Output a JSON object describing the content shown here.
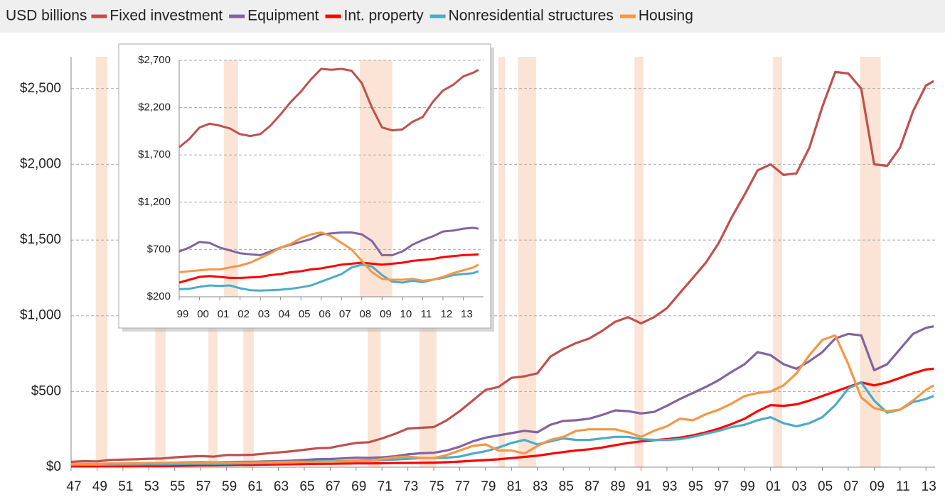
{
  "chart_data": [
    {
      "type": "line",
      "y_label": "USD billions",
      "grid": true,
      "x": [
        1947,
        1948,
        1949,
        1950,
        1951,
        1952,
        1953,
        1954,
        1955,
        1956,
        1957,
        1958,
        1959,
        1960,
        1961,
        1962,
        1963,
        1964,
        1965,
        1966,
        1967,
        1968,
        1969,
        1970,
        1971,
        1972,
        1973,
        1974,
        1975,
        1976,
        1977,
        1978,
        1979,
        1980,
        1981,
        1982,
        1983,
        1984,
        1985,
        1986,
        1987,
        1988,
        1989,
        1990,
        1991,
        1992,
        1993,
        1994,
        1995,
        1996,
        1997,
        1998,
        1999,
        2000,
        2001,
        2002,
        2003,
        2004,
        2005,
        2006,
        2007,
        2008,
        2009,
        2010,
        2011,
        2012,
        2013,
        2013.6
      ],
      "xlim": [
        1947,
        2013.7
      ],
      "xticks": [
        {
          "value": 1947,
          "label": "47"
        },
        {
          "value": 1949,
          "label": "49"
        },
        {
          "value": 1951,
          "label": "51"
        },
        {
          "value": 1953,
          "label": "53"
        },
        {
          "value": 1955,
          "label": "55"
        },
        {
          "value": 1957,
          "label": "57"
        },
        {
          "value": 1959,
          "label": "59"
        },
        {
          "value": 1961,
          "label": "61"
        },
        {
          "value": 1963,
          "label": "63"
        },
        {
          "value": 1965,
          "label": "65"
        },
        {
          "value": 1967,
          "label": "67"
        },
        {
          "value": 1969,
          "label": "69"
        },
        {
          "value": 1971,
          "label": "71"
        },
        {
          "value": 1973,
          "label": "73"
        },
        {
          "value": 1975,
          "label": "75"
        },
        {
          "value": 1977,
          "label": "77"
        },
        {
          "value": 1979,
          "label": "79"
        },
        {
          "value": 1981,
          "label": "81"
        },
        {
          "value": 1983,
          "label": "83"
        },
        {
          "value": 1985,
          "label": "85"
        },
        {
          "value": 1987,
          "label": "87"
        },
        {
          "value": 1989,
          "label": "89"
        },
        {
          "value": 1991,
          "label": "91"
        },
        {
          "value": 1993,
          "label": "93"
        },
        {
          "value": 1995,
          "label": "95"
        },
        {
          "value": 1997,
          "label": "97"
        },
        {
          "value": 1999,
          "label": "99"
        },
        {
          "value": 2001,
          "label": "01"
        },
        {
          "value": 2003,
          "label": "03"
        },
        {
          "value": 2005,
          "label": "05"
        },
        {
          "value": 2007,
          "label": "07"
        },
        {
          "value": 2009,
          "label": "09"
        },
        {
          "value": 2011,
          "label": "11"
        },
        {
          "value": 2013,
          "label": "13"
        }
      ],
      "ylim": [
        0,
        2710
      ],
      "yticks": [
        {
          "value": 0,
          "label": "$0"
        },
        {
          "value": 500,
          "label": "$500"
        },
        {
          "value": 1000,
          "label": "$1,000"
        },
        {
          "value": 1500,
          "label": "$1,500"
        },
        {
          "value": 2000,
          "label": "$2,000"
        },
        {
          "value": 2500,
          "label": "$2,500"
        }
      ],
      "recessions": [
        [
          1948.9,
          1949.8
        ],
        [
          1953.5,
          1954.3
        ],
        [
          1957.6,
          1958.3
        ],
        [
          1960.3,
          1961.1
        ],
        [
          1969.9,
          1970.9
        ],
        [
          1973.9,
          1975.2
        ],
        [
          1980.0,
          1980.5
        ],
        [
          1981.5,
          1982.9
        ],
        [
          1990.5,
          1991.2
        ],
        [
          2001.2,
          2001.9
        ],
        [
          2007.9,
          2009.5
        ]
      ],
      "recession_color": "#fbe4d5",
      "series": [
        {
          "name": "Fixed investment",
          "color": "#c0504d",
          "values": [
            35,
            40,
            38,
            48,
            50,
            52,
            56,
            57,
            65,
            70,
            73,
            70,
            80,
            80,
            82,
            90,
            97,
            105,
            115,
            125,
            128,
            145,
            160,
            165,
            190,
            220,
            255,
            260,
            265,
            310,
            370,
            440,
            510,
            530,
            590,
            600,
            620,
            730,
            780,
            820,
            850,
            900,
            960,
            990,
            950,
            990,
            1050,
            1150,
            1250,
            1350,
            1480,
            1650,
            1800,
            1960,
            2000,
            1930,
            1940,
            2110,
            2380,
            2610,
            2600,
            2500,
            2000,
            1990,
            2110,
            2350,
            2520,
            2550
          ]
        },
        {
          "name": "Equipment",
          "color": "#8064a2",
          "values": [
            20,
            21,
            20,
            22,
            24,
            25,
            27,
            27,
            30,
            32,
            33,
            31,
            34,
            35,
            35,
            38,
            40,
            43,
            48,
            53,
            54,
            58,
            63,
            62,
            65,
            72,
            85,
            92,
            95,
            110,
            135,
            170,
            195,
            210,
            225,
            240,
            230,
            280,
            305,
            310,
            320,
            345,
            375,
            370,
            355,
            365,
            405,
            450,
            490,
            530,
            575,
            630,
            680,
            760,
            740,
            680,
            650,
            700,
            760,
            850,
            880,
            870,
            640,
            680,
            780,
            880,
            920,
            930
          ]
        },
        {
          "name": "Int. property",
          "color": "#ff0000",
          "values": [
            5,
            5,
            5,
            6,
            6,
            7,
            8,
            9,
            10,
            11,
            12,
            13,
            14,
            15,
            16,
            17,
            18,
            19,
            20,
            22,
            23,
            24,
            25,
            25,
            26,
            27,
            28,
            29,
            30,
            33,
            37,
            42,
            47,
            52,
            60,
            68,
            76,
            88,
            100,
            110,
            118,
            130,
            145,
            160,
            170,
            178,
            185,
            195,
            210,
            230,
            255,
            285,
            320,
            370,
            410,
            405,
            415,
            440,
            470,
            500,
            530,
            560,
            540,
            560,
            590,
            620,
            645,
            650
          ]
        },
        {
          "name": "Nonresidential structures",
          "color": "#4bacc6",
          "values": [
            15,
            16,
            16,
            17,
            18,
            18,
            19,
            19,
            20,
            22,
            23,
            22,
            23,
            25,
            26,
            27,
            28,
            30,
            35,
            38,
            38,
            40,
            43,
            45,
            47,
            50,
            55,
            60,
            60,
            63,
            70,
            90,
            105,
            130,
            160,
            180,
            150,
            170,
            190,
            180,
            180,
            190,
            200,
            200,
            185,
            180,
            180,
            185,
            200,
            220,
            240,
            265,
            280,
            310,
            330,
            290,
            270,
            290,
            330,
            410,
            520,
            560,
            440,
            360,
            380,
            430,
            450,
            470
          ]
        },
        {
          "name": "Housing",
          "color": "#f79646",
          "values": [
            20,
            22,
            21,
            25,
            24,
            25,
            27,
            28,
            30,
            29,
            28,
            29,
            31,
            30,
            30,
            32,
            34,
            35,
            35,
            34,
            35,
            38,
            40,
            40,
            55,
            65,
            70,
            62,
            60,
            80,
            110,
            140,
            150,
            110,
            110,
            90,
            140,
            180,
            200,
            240,
            250,
            250,
            250,
            230,
            200,
            240,
            270,
            320,
            310,
            350,
            380,
            420,
            470,
            490,
            500,
            540,
            620,
            740,
            840,
            870,
            680,
            460,
            390,
            370,
            380,
            440,
            510,
            540
          ]
        }
      ]
    },
    {
      "type": "line",
      "grid": true,
      "x": [
        1999,
        1999.5,
        2000,
        2000.5,
        2001,
        2001.5,
        2002,
        2002.5,
        2003,
        2003.5,
        2004,
        2004.5,
        2005,
        2005.5,
        2006,
        2006.5,
        2007,
        2007.5,
        2008,
        2008.5,
        2009,
        2009.5,
        2010,
        2010.5,
        2011,
        2011.5,
        2012,
        2012.5,
        2013,
        2013.5,
        2013.75
      ],
      "xlim": [
        1999,
        2014
      ],
      "xticks": [
        {
          "value": 1999,
          "label": "99"
        },
        {
          "value": 2000,
          "label": "00"
        },
        {
          "value": 2001,
          "label": "01"
        },
        {
          "value": 2002,
          "label": "02"
        },
        {
          "value": 2003,
          "label": "03"
        },
        {
          "value": 2004,
          "label": "04"
        },
        {
          "value": 2005,
          "label": "05"
        },
        {
          "value": 2006,
          "label": "06"
        },
        {
          "value": 2007,
          "label": "07"
        },
        {
          "value": 2008,
          "label": "08"
        },
        {
          "value": 2009,
          "label": "09"
        },
        {
          "value": 2010,
          "label": "10"
        },
        {
          "value": 2011,
          "label": "11"
        },
        {
          "value": 2012,
          "label": "12"
        },
        {
          "value": 2013,
          "label": "13"
        }
      ],
      "ylim": [
        200,
        2700
      ],
      "yticks": [
        {
          "value": 200,
          "label": "$200"
        },
        {
          "value": 700,
          "label": "$700"
        },
        {
          "value": 1200,
          "label": "$1,200"
        },
        {
          "value": 1700,
          "label": "$1,700"
        },
        {
          "value": 2200,
          "label": "$2,200"
        },
        {
          "value": 2700,
          "label": "$2,700"
        }
      ],
      "recessions": [
        [
          2001.2,
          2001.9
        ],
        [
          2007.9,
          2009.5
        ]
      ],
      "recession_color": "#fbe4d5",
      "series": [
        {
          "color": "#c0504d",
          "values": [
            1780,
            1870,
            1990,
            2030,
            2010,
            1980,
            1920,
            1900,
            1920,
            2010,
            2130,
            2260,
            2370,
            2500,
            2610,
            2600,
            2610,
            2590,
            2460,
            2200,
            1990,
            1960,
            1970,
            2050,
            2100,
            2260,
            2380,
            2440,
            2530,
            2570,
            2600
          ]
        },
        {
          "color": "#8064a2",
          "values": [
            680,
            720,
            780,
            770,
            720,
            690,
            660,
            650,
            640,
            680,
            720,
            750,
            780,
            810,
            860,
            870,
            880,
            880,
            860,
            790,
            640,
            640,
            680,
            750,
            800,
            840,
            890,
            900,
            920,
            930,
            920
          ]
        },
        {
          "color": "#ff0000",
          "values": [
            350,
            380,
            410,
            420,
            410,
            400,
            400,
            405,
            410,
            430,
            440,
            460,
            470,
            490,
            500,
            520,
            540,
            550,
            560,
            550,
            540,
            550,
            560,
            580,
            590,
            600,
            620,
            630,
            640,
            645,
            650
          ]
        },
        {
          "color": "#4bacc6",
          "values": [
            280,
            285,
            305,
            320,
            315,
            320,
            290,
            270,
            265,
            270,
            275,
            285,
            300,
            320,
            360,
            400,
            440,
            510,
            540,
            520,
            430,
            360,
            350,
            370,
            355,
            380,
            400,
            430,
            440,
            450,
            470
          ]
        },
        {
          "color": "#f79646",
          "values": [
            460,
            470,
            480,
            490,
            490,
            510,
            530,
            560,
            610,
            660,
            720,
            760,
            820,
            860,
            880,
            840,
            770,
            700,
            580,
            460,
            390,
            380,
            380,
            390,
            370,
            380,
            410,
            450,
            480,
            510,
            540
          ]
        }
      ]
    }
  ]
}
